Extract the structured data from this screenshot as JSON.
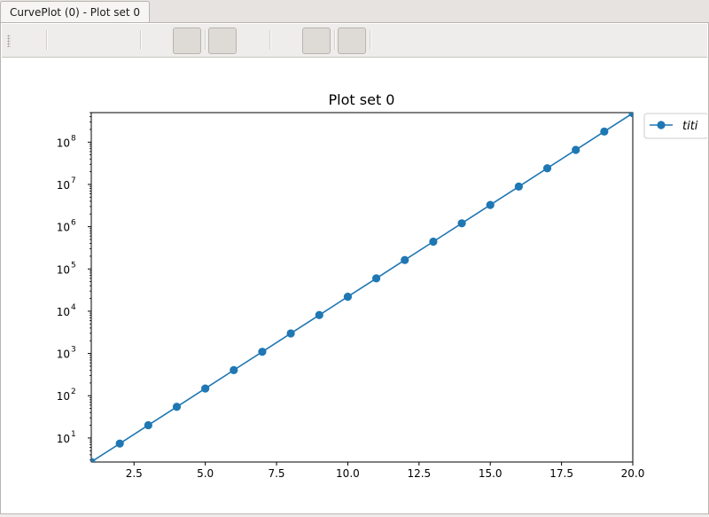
{
  "tab": {
    "label": "CurvePlot (0) - Plot set 0"
  },
  "chart_data": {
    "type": "line",
    "title": "Plot set 0",
    "xlabel": "",
    "ylabel": "",
    "xlim": [
      1,
      20
    ],
    "ylim": [
      2.7,
      500000000
    ],
    "yscale": "log",
    "grid": false,
    "legend_position": "outside-top-right",
    "x_ticks": [
      "2.5",
      "5.0",
      "7.5",
      "10.0",
      "12.5",
      "15.0",
      "17.5",
      "20.0"
    ],
    "y_ticks": [
      {
        "base": "10",
        "exp": "1"
      },
      {
        "base": "10",
        "exp": "2"
      },
      {
        "base": "10",
        "exp": "3"
      },
      {
        "base": "10",
        "exp": "4"
      },
      {
        "base": "10",
        "exp": "5"
      },
      {
        "base": "10",
        "exp": "6"
      },
      {
        "base": "10",
        "exp": "7"
      },
      {
        "base": "10",
        "exp": "8"
      }
    ],
    "series": [
      {
        "name": "titi",
        "color": "#1f77b4",
        "marker": "circle",
        "x": [
          1,
          2,
          3,
          4,
          5,
          6,
          7,
          8,
          9,
          10,
          11,
          12,
          13,
          14,
          15,
          16,
          17,
          18,
          19,
          20
        ],
        "y": [
          2.718,
          7.389,
          20.09,
          54.6,
          148.4,
          403.4,
          1097,
          2981,
          8103,
          22026,
          59874,
          162755,
          442413,
          1202604,
          3269017,
          8886111,
          24154953,
          65659969,
          178482301,
          485165195
        ]
      }
    ]
  }
}
